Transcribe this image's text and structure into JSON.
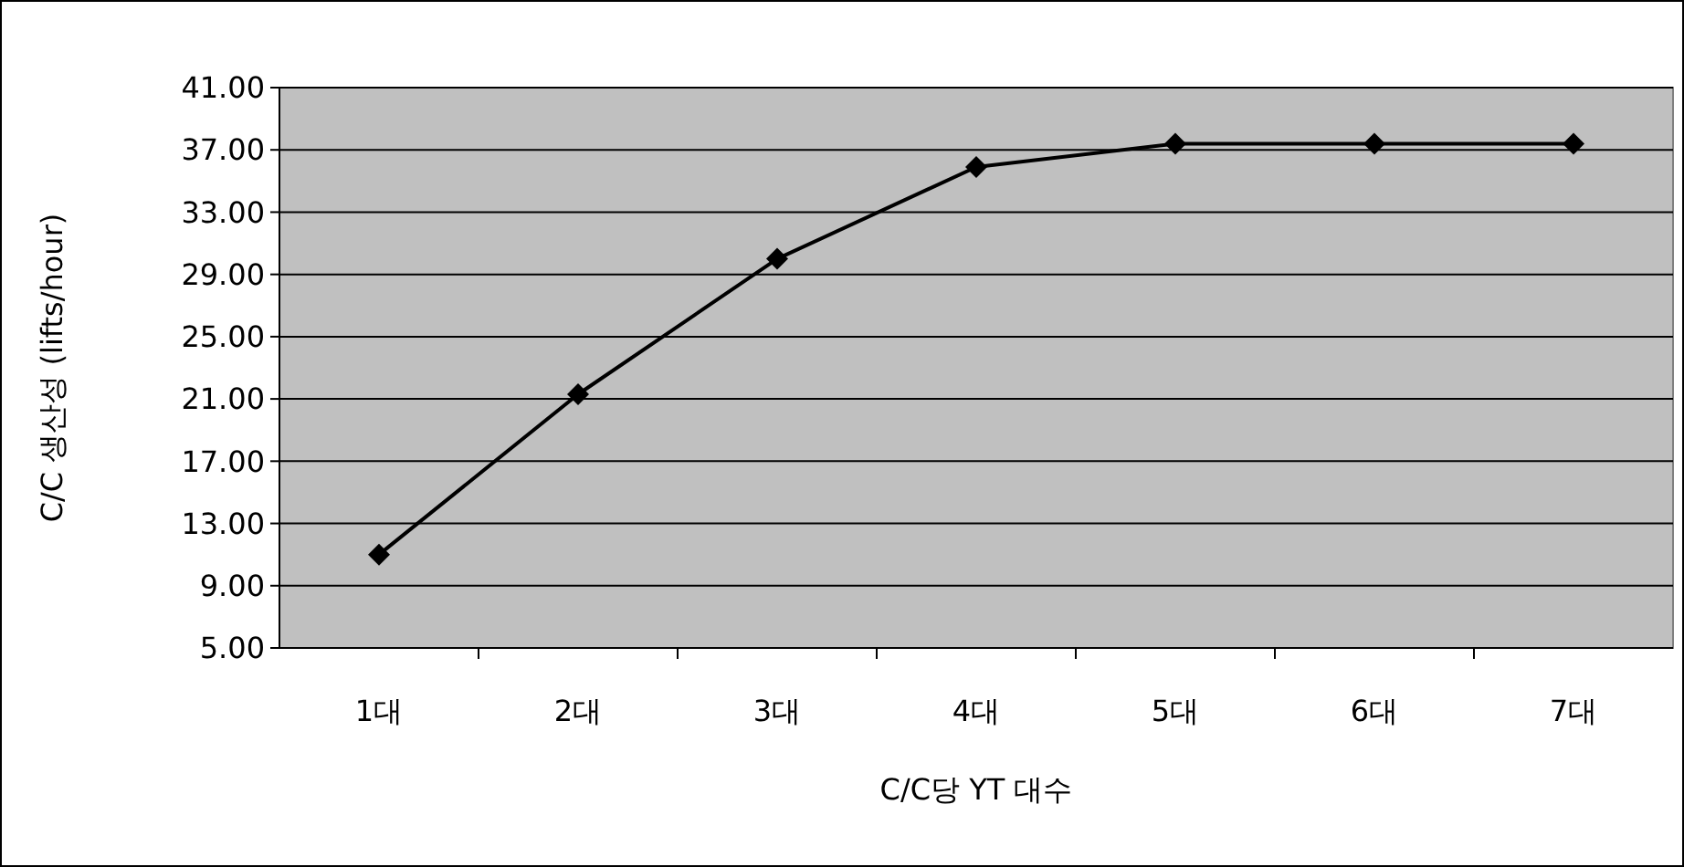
{
  "chart_data": {
    "type": "line",
    "xlabel": "C/C당 YT 대수",
    "ylabel": "C/C 생산성 (lifts/hour)",
    "categories": [
      "1대",
      "2대",
      "3대",
      "4대",
      "5대",
      "6대",
      "7대"
    ],
    "series": [
      {
        "color": "#000000",
        "values": [
          11.0,
          21.3,
          30.0,
          35.9,
          37.4,
          37.4,
          37.4
        ]
      }
    ],
    "ylim": [
      5,
      41
    ],
    "yticks": [
      {
        "value": 5,
        "label": "5.00"
      },
      {
        "value": 9,
        "label": "9.00"
      },
      {
        "value": 13,
        "label": "13.00"
      },
      {
        "value": 17,
        "label": "17.00"
      },
      {
        "value": 21,
        "label": "21.00"
      },
      {
        "value": 25,
        "label": "25.00"
      },
      {
        "value": 29,
        "label": "29.00"
      },
      {
        "value": 33,
        "label": "33.00"
      },
      {
        "value": 37,
        "label": "37.00"
      },
      {
        "value": 41,
        "label": "41.00"
      }
    ],
    "grid": "y",
    "marker": "diamond",
    "line_style": "solid"
  }
}
